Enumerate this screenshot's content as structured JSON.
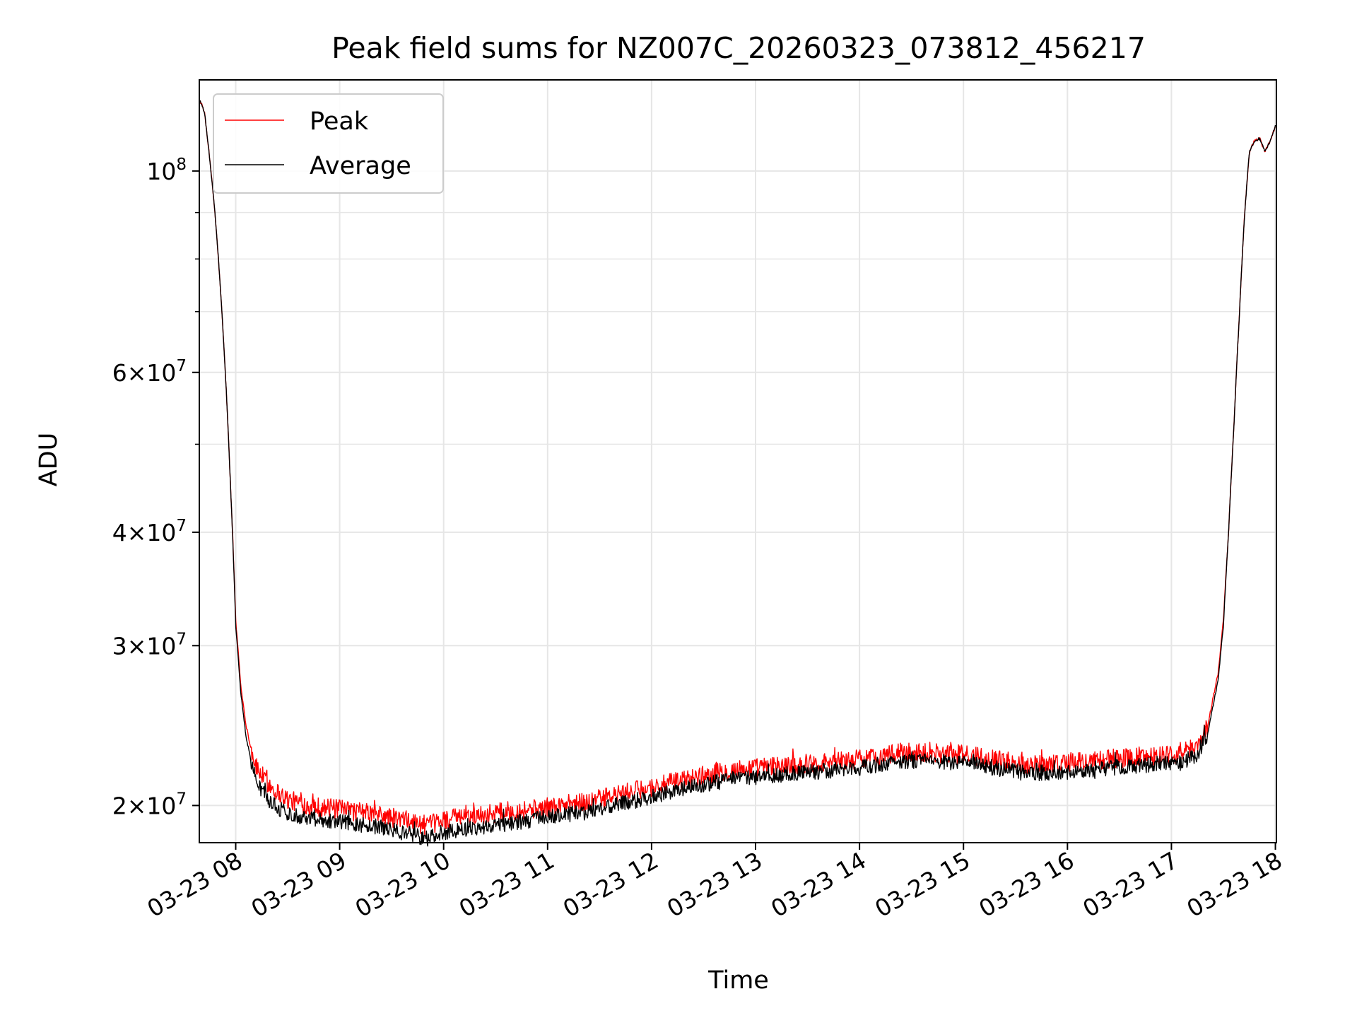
{
  "chart_data": {
    "type": "line",
    "title": "Peak field sums for NZ007C_20260323_073812_456217",
    "xlabel": "Time",
    "ylabel": "ADU",
    "yscale": "log",
    "grid": true,
    "legend_position": "upper-left",
    "x_unit": "hours since 03-23 00:00",
    "xlim": [
      7.65,
      18.01
    ],
    "ylim": [
      18200000,
      126000000
    ],
    "x_ticks": [
      {
        "value": 8,
        "label": "03-23 08"
      },
      {
        "value": 9,
        "label": "03-23 09"
      },
      {
        "value": 10,
        "label": "03-23 10"
      },
      {
        "value": 11,
        "label": "03-23 11"
      },
      {
        "value": 12,
        "label": "03-23 12"
      },
      {
        "value": 13,
        "label": "03-23 13"
      },
      {
        "value": 14,
        "label": "03-23 14"
      },
      {
        "value": 15,
        "label": "03-23 15"
      },
      {
        "value": 16,
        "label": "03-23 16"
      },
      {
        "value": 17,
        "label": "03-23 17"
      },
      {
        "value": 18,
        "label": "03-23 18"
      }
    ],
    "y_major_ticks": [
      {
        "value": 100000000,
        "mantissa": "",
        "exponent": "8"
      },
      {
        "value": 60000000,
        "mantissa": "6",
        "exponent": "7"
      },
      {
        "value": 40000000,
        "mantissa": "4",
        "exponent": "7"
      },
      {
        "value": 30000000,
        "mantissa": "3",
        "exponent": "7"
      },
      {
        "value": 20000000,
        "mantissa": "2",
        "exponent": "7"
      }
    ],
    "y_tick_base": "10",
    "y_tick_times": "×",
    "y_minor_ticks": [
      50000000,
      70000000,
      80000000,
      90000000
    ],
    "series": [
      {
        "name": "Peak",
        "color": "#ff0000",
        "noise_amplitude": 0.025,
        "x": [
          7.65,
          7.7,
          7.8,
          7.9,
          7.95,
          8.0,
          8.05,
          8.1,
          8.15,
          8.2,
          8.3,
          8.4,
          8.5,
          8.7,
          9.0,
          9.3,
          9.6,
          9.85,
          10.0,
          10.3,
          10.6,
          11.0,
          11.4,
          11.8,
          12.2,
          12.5,
          12.8,
          13.2,
          13.6,
          14.0,
          14.3,
          14.6,
          14.9,
          15.1,
          15.3,
          15.6,
          16.0,
          16.4,
          16.8,
          17.1,
          17.25,
          17.35,
          17.45,
          17.5,
          17.55,
          17.6,
          17.65,
          17.7,
          17.75,
          17.8,
          17.85,
          17.9,
          17.95,
          18.0
        ],
        "y": [
          120000000,
          116000000,
          90000000,
          60000000,
          45000000,
          32000000,
          27000000,
          24500000,
          23000000,
          22000000,
          21200000,
          20700000,
          20300000,
          20000000,
          19800000,
          19600000,
          19300000,
          19000000,
          19300000,
          19500000,
          19700000,
          19900000,
          20200000,
          20700000,
          21200000,
          21600000,
          21900000,
          22100000,
          22300000,
          22500000,
          22800000,
          22900000,
          22800000,
          22700000,
          22500000,
          22200000,
          22300000,
          22500000,
          22700000,
          22800000,
          23300000,
          24500000,
          28000000,
          32000000,
          40000000,
          52000000,
          68000000,
          88000000,
          105000000,
          108000000,
          108500000,
          105000000,
          108000000,
          112000000
        ]
      },
      {
        "name": "Average",
        "color": "#000000",
        "noise_amplitude": 0.02,
        "x": [
          7.65,
          7.7,
          7.8,
          7.9,
          7.95,
          8.0,
          8.05,
          8.1,
          8.15,
          8.2,
          8.3,
          8.4,
          8.5,
          8.7,
          9.0,
          9.3,
          9.6,
          9.85,
          10.0,
          10.3,
          10.6,
          11.0,
          11.4,
          11.8,
          12.2,
          12.5,
          12.8,
          13.2,
          13.6,
          14.0,
          14.3,
          14.6,
          14.9,
          15.1,
          15.3,
          15.6,
          16.0,
          16.4,
          16.8,
          17.1,
          17.25,
          17.35,
          17.45,
          17.5,
          17.55,
          17.6,
          17.65,
          17.7,
          17.75,
          17.8,
          17.85,
          17.9,
          17.95,
          18.0
        ],
        "y": [
          120000000,
          116000000,
          90000000,
          60000000,
          45000000,
          31500000,
          26500000,
          23800000,
          22300000,
          21200000,
          20400000,
          19900000,
          19600000,
          19400000,
          19200000,
          19000000,
          18700000,
          18400000,
          18700000,
          18900000,
          19100000,
          19400000,
          19700000,
          20200000,
          20700000,
          21100000,
          21400000,
          21600000,
          21800000,
          22000000,
          22300000,
          22400000,
          22300000,
          22200000,
          22000000,
          21700000,
          21800000,
          22000000,
          22200000,
          22300000,
          22800000,
          24000000,
          27500000,
          31500000,
          40000000,
          52000000,
          68000000,
          88000000,
          105000000,
          108000000,
          108500000,
          105000000,
          108000000,
          112000000
        ]
      }
    ]
  }
}
